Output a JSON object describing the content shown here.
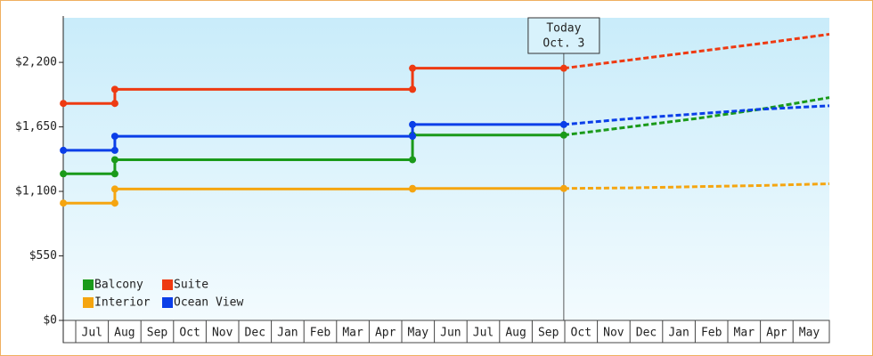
{
  "chart_data": {
    "type": "step-line",
    "categories": [
      "Jul",
      "Aug",
      "Sep",
      "Oct",
      "Nov",
      "Dec",
      "Jan",
      "Feb",
      "Mar",
      "Apr",
      "May",
      "Jun",
      "Jul",
      "Aug",
      "Sep",
      "Oct",
      "Nov",
      "Dec",
      "Jan",
      "Feb",
      "Mar",
      "Apr",
      "May"
    ],
    "xlim": [
      -0.38,
      23.3
    ],
    "ylim": [
      0,
      2580
    ],
    "yticks": [
      {
        "value": 0,
        "label": "$0"
      },
      {
        "value": 550,
        "label": "$550"
      },
      {
        "value": 1100,
        "label": "$1,100"
      },
      {
        "value": 1650,
        "label": "$1,650"
      },
      {
        "value": 2200,
        "label": "$2,200"
      }
    ],
    "today": {
      "x": 14.97,
      "label": "Today",
      "date": "Oct. 3"
    },
    "series": [
      {
        "name": "Balcony",
        "color": "#1a9a1a",
        "x": [
          -0.38,
          1.2,
          1.2,
          10.33,
          10.33,
          14.97
        ],
        "values": [
          1250,
          1250,
          1370,
          1370,
          1580,
          1580
        ],
        "forecast": {
          "x": [
            14.97,
            17,
            19,
            21,
            23.3
          ],
          "values": [
            1580,
            1650,
            1720,
            1800,
            1900
          ]
        }
      },
      {
        "name": "Suite",
        "color": "#ee3a12",
        "x": [
          -0.38,
          1.2,
          1.2,
          10.33,
          10.33,
          14.97
        ],
        "values": [
          1850,
          1850,
          1970,
          1970,
          2150,
          2150
        ],
        "forecast": {
          "x": [
            14.97,
            17,
            19,
            21,
            23.3
          ],
          "values": [
            2150,
            2220,
            2290,
            2360,
            2440
          ]
        }
      },
      {
        "name": "Interior",
        "color": "#f5a510",
        "x": [
          -0.38,
          1.2,
          1.2,
          10.33,
          10.33,
          14.97
        ],
        "values": [
          1000,
          1000,
          1120,
          1120,
          1125,
          1125
        ],
        "forecast": {
          "x": [
            14.97,
            17,
            19,
            21,
            23.3
          ],
          "values": [
            1125,
            1130,
            1140,
            1150,
            1165
          ]
        }
      },
      {
        "name": "Ocean View",
        "color": "#0a3ee8",
        "x": [
          -0.38,
          1.2,
          1.2,
          10.33,
          10.33,
          14.97
        ],
        "values": [
          1450,
          1450,
          1570,
          1570,
          1670,
          1670
        ],
        "forecast": {
          "x": [
            14.97,
            17,
            19,
            21,
            23.3
          ],
          "values": [
            1670,
            1720,
            1760,
            1800,
            1830
          ]
        }
      }
    ]
  }
}
